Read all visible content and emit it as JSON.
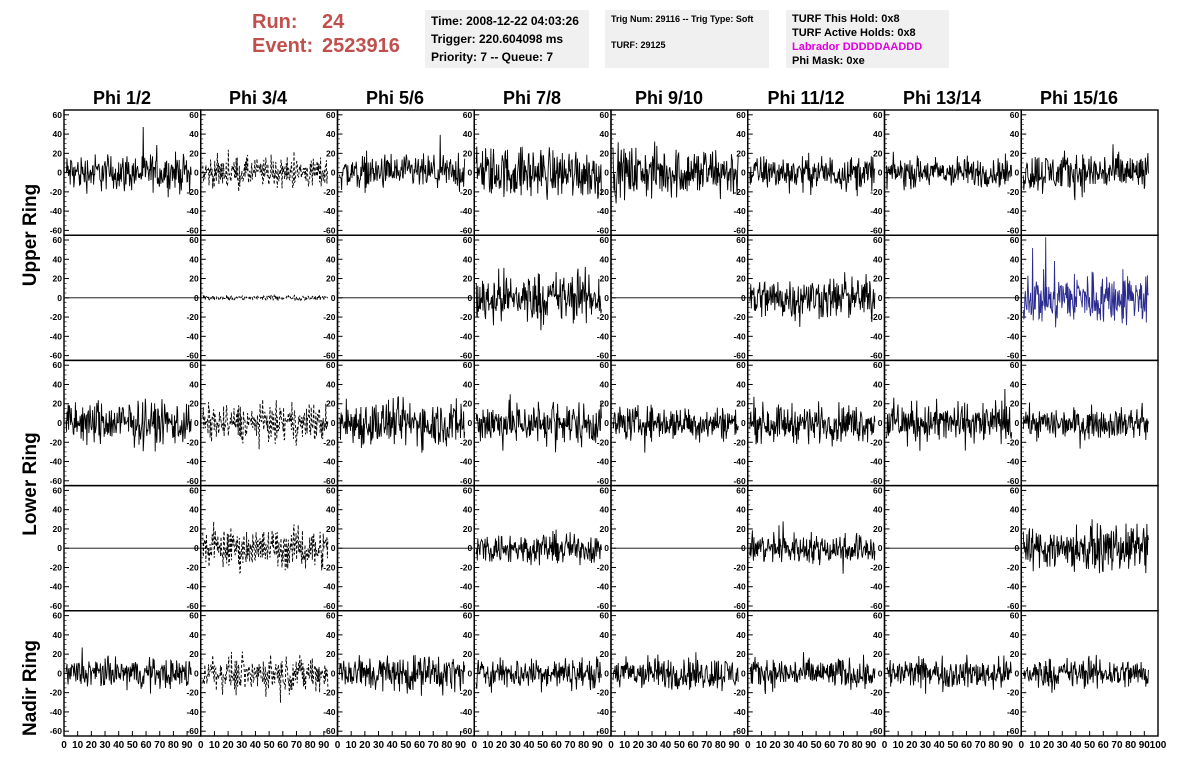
{
  "header": {
    "run_label": "Run:",
    "run_value": "24",
    "event_label": "Event:",
    "event_value": "2523916"
  },
  "info_time": {
    "time": "Time: 2008-12-22 04:03:26",
    "trigger": "Trigger: 220.604098 ms",
    "priority": "Priority: 7 -- Queue: 7"
  },
  "info_trig": {
    "trig": "Trig Num: 29116 -- Trig Type: Soft",
    "turf": "TURF: 29125"
  },
  "info_turf": {
    "this_hold": "TURF This Hold: 0x8",
    "active_holds": "TURF Active Holds: 0x8",
    "labrador": "Labrador DDDDDAADDD",
    "phi_mask": "Phi Mask: 0xe"
  },
  "colors": {
    "accent": "#c0504d",
    "labrador": "#e000e0",
    "trace": "#000000",
    "highlight_trace": "#2b2b8f",
    "panel_bg": "#f0f0f0"
  },
  "chart_data": {
    "type": "line",
    "phi_headers": [
      "Phi 1/2",
      "Phi 3/4",
      "Phi 5/6",
      "Phi 7/8",
      "Phi 9/10",
      "Phi 11/12",
      "Phi 13/14",
      "Phi 15/16"
    ],
    "ring_labels": [
      "Upper Ring",
      "Lower Ring",
      "Nadir Ring"
    ],
    "ylim": [
      -65,
      65
    ],
    "xlim": [
      0,
      100
    ],
    "y_ticks": [
      -60,
      -40,
      -20,
      0,
      20,
      40,
      60
    ],
    "x_ticks": [
      0,
      10,
      20,
      30,
      40,
      50,
      60,
      70,
      80,
      90,
      100
    ],
    "grid": false,
    "rows": [
      {
        "ring": "Upper Ring",
        "channels": [
          {
            "amplitude": 22,
            "style": "solid"
          },
          {
            "amplitude": 18,
            "style": "dashed"
          },
          {
            "amplitude": 20,
            "style": "solid"
          },
          {
            "amplitude": 30,
            "style": "solid"
          },
          {
            "amplitude": 30,
            "style": "solid"
          },
          {
            "amplitude": 20,
            "style": "solid"
          },
          {
            "amplitude": 18,
            "style": "solid"
          },
          {
            "amplitude": 24,
            "style": "solid"
          }
        ]
      },
      {
        "ring": "Upper Ring",
        "channels": [
          {
            "amplitude": 0,
            "style": "solid"
          },
          {
            "amplitude": 3,
            "style": "dashed"
          },
          {
            "amplitude": 0,
            "style": "solid"
          },
          {
            "amplitude": 30,
            "style": "solid"
          },
          {
            "amplitude": 0,
            "style": "solid"
          },
          {
            "amplitude": 25,
            "style": "solid"
          },
          {
            "amplitude": 0,
            "style": "solid"
          },
          {
            "amplitude": 32,
            "style": "highlight"
          }
        ]
      },
      {
        "ring": "Lower Ring",
        "channels": [
          {
            "amplitude": 26,
            "style": "solid"
          },
          {
            "amplitude": 22,
            "style": "dashed"
          },
          {
            "amplitude": 28,
            "style": "solid"
          },
          {
            "amplitude": 26,
            "style": "solid"
          },
          {
            "amplitude": 20,
            "style": "solid"
          },
          {
            "amplitude": 22,
            "style": "solid"
          },
          {
            "amplitude": 24,
            "style": "solid"
          },
          {
            "amplitude": 18,
            "style": "solid"
          }
        ]
      },
      {
        "ring": "Lower Ring",
        "channels": [
          {
            "amplitude": 0,
            "style": "solid"
          },
          {
            "amplitude": 24,
            "style": "dashed"
          },
          {
            "amplitude": 0,
            "style": "solid"
          },
          {
            "amplitude": 18,
            "style": "solid"
          },
          {
            "amplitude": 0,
            "style": "solid"
          },
          {
            "amplitude": 18,
            "style": "solid"
          },
          {
            "amplitude": 0,
            "style": "solid"
          },
          {
            "amplitude": 26,
            "style": "solid"
          }
        ]
      },
      {
        "ring": "Nadir Ring",
        "channels": [
          {
            "amplitude": 18,
            "style": "solid"
          },
          {
            "amplitude": 20,
            "style": "dashed"
          },
          {
            "amplitude": 22,
            "style": "solid"
          },
          {
            "amplitude": 18,
            "style": "solid"
          },
          {
            "amplitude": 20,
            "style": "solid"
          },
          {
            "amplitude": 18,
            "style": "solid"
          },
          {
            "amplitude": 18,
            "style": "solid"
          },
          {
            "amplitude": 18,
            "style": "solid"
          }
        ]
      }
    ]
  }
}
